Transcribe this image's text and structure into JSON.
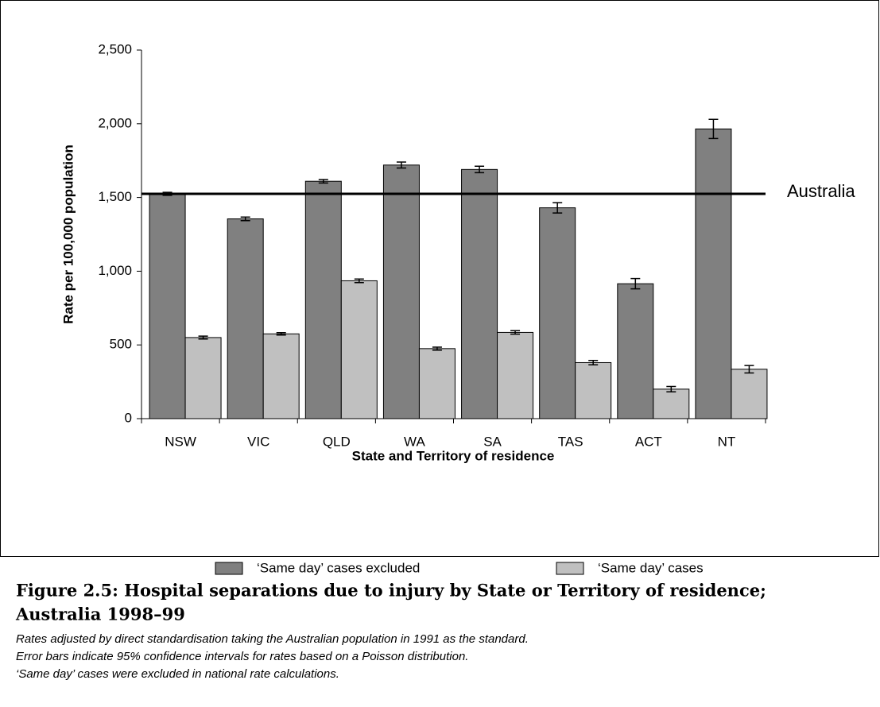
{
  "chart_data": {
    "type": "bar",
    "categories": [
      "NSW",
      "VIC",
      "QLD",
      "WA",
      "SA",
      "TAS",
      "ACT",
      "NT"
    ],
    "series": [
      {
        "name": "‘Same day’ cases excluded",
        "color": "#808080",
        "values": [
          1525,
          1355,
          1610,
          1720,
          1690,
          1430,
          915,
          1965
        ],
        "errors": [
          10,
          12,
          12,
          20,
          22,
          35,
          35,
          65
        ]
      },
      {
        "name": "‘Same day’ cases",
        "color": "#c0c0c0",
        "values": [
          550,
          575,
          935,
          475,
          585,
          380,
          200,
          335
        ],
        "errors": [
          10,
          8,
          12,
          10,
          12,
          15,
          18,
          25
        ]
      }
    ],
    "reference_line": {
      "label": "Australia",
      "value": 1525
    },
    "ylim": [
      0,
      2500
    ],
    "yticks": [
      0,
      {
        "value": 500,
        "label": "500"
      },
      {
        "value": 1000,
        "label": "1,000"
      },
      {
        "value": 1500,
        "label": "1,500"
      },
      {
        "value": 2000,
        "label": "2,000"
      },
      {
        "value": 2500,
        "label": "2,500"
      }
    ],
    "y_label": "Rate per 100,000 population",
    "x_label": "State and Territory of residence",
    "caption": [
      "Figure 2.5: Hospital separations due to injury by State or Territory of residence;",
      "Australia 1998–99"
    ],
    "notes": [
      "Rates adjusted by direct standardisation taking the Australian population in 1991 as the standard.",
      "Error bars indicate 95% confidence intervals for rates based on a Poisson distribution.",
      "‘Same day’ cases were excluded in national rate calculations."
    ]
  }
}
